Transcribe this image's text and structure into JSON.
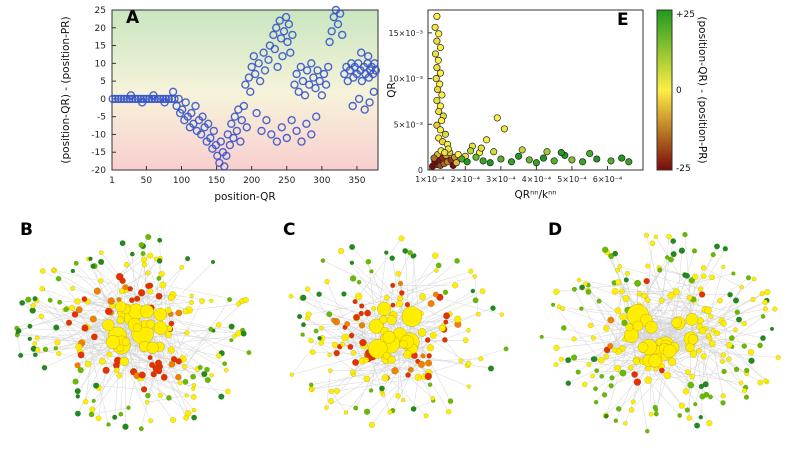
{
  "chart_data": {
    "panel_A": {
      "label": "A",
      "type": "scatter",
      "xlabel": "position-QR",
      "ylabel": "(position-QR) - (position-PR)",
      "xlim": [
        1,
        380
      ],
      "ylim": [
        -20,
        25
      ],
      "xticks": [
        1,
        50,
        100,
        150,
        200,
        250,
        300,
        350
      ],
      "yticks": [
        -20,
        -15,
        -10,
        -5,
        0,
        5,
        10,
        15,
        20,
        25
      ],
      "marker_color": "#3352c8",
      "bg_gradient": [
        "#c9e6c0",
        "#f6f3da",
        "#f9cfcf"
      ],
      "points": [
        [
          2,
          0
        ],
        [
          6,
          0
        ],
        [
          10,
          0
        ],
        [
          14,
          0
        ],
        [
          18,
          0
        ],
        [
          22,
          0
        ],
        [
          26,
          0
        ],
        [
          30,
          0
        ],
        [
          34,
          0
        ],
        [
          38,
          0
        ],
        [
          42,
          0
        ],
        [
          46,
          0
        ],
        [
          50,
          0
        ],
        [
          54,
          0
        ],
        [
          58,
          0
        ],
        [
          62,
          0
        ],
        [
          66,
          0
        ],
        [
          70,
          0
        ],
        [
          74,
          0
        ],
        [
          78,
          0
        ],
        [
          82,
          0
        ],
        [
          86,
          0
        ],
        [
          90,
          0
        ],
        [
          28,
          1
        ],
        [
          44,
          -1
        ],
        [
          60,
          1
        ],
        [
          76,
          -1
        ],
        [
          88,
          2
        ],
        [
          93,
          -2
        ],
        [
          96,
          0
        ],
        [
          98,
          -4
        ],
        [
          101,
          -3
        ],
        [
          104,
          -6
        ],
        [
          106,
          -1
        ],
        [
          109,
          -5
        ],
        [
          112,
          -8
        ],
        [
          114,
          -4
        ],
        [
          117,
          -7
        ],
        [
          120,
          -2
        ],
        [
          122,
          -9
        ],
        [
          125,
          -6
        ],
        [
          128,
          -10
        ],
        [
          130,
          -5
        ],
        [
          133,
          -8
        ],
        [
          136,
          -12
        ],
        [
          138,
          -7
        ],
        [
          141,
          -11
        ],
        [
          144,
          -14
        ],
        [
          146,
          -9
        ],
        [
          149,
          -13
        ],
        [
          151,
          -16
        ],
        [
          154,
          -18
        ],
        [
          156,
          -12
        ],
        [
          159,
          -15
        ],
        [
          161,
          -19
        ],
        [
          164,
          -16
        ],
        [
          166,
          -10
        ],
        [
          169,
          -13
        ],
        [
          171,
          -7
        ],
        [
          174,
          -11
        ],
        [
          176,
          -5
        ],
        [
          179,
          -9
        ],
        [
          181,
          -3
        ],
        [
          184,
          -12
        ],
        [
          186,
          -6
        ],
        [
          189,
          -2
        ],
        [
          191,
          4
        ],
        [
          193,
          -8
        ],
        [
          196,
          6
        ],
        [
          198,
          2
        ],
        [
          200,
          9
        ],
        [
          203,
          12
        ],
        [
          205,
          7
        ],
        [
          207,
          -4
        ],
        [
          210,
          10
        ],
        [
          212,
          5
        ],
        [
          214,
          -9
        ],
        [
          217,
          13
        ],
        [
          219,
          8
        ],
        [
          221,
          -6
        ],
        [
          224,
          11
        ],
        [
          226,
          15
        ],
        [
          228,
          -10
        ],
        [
          231,
          18
        ],
        [
          233,
          14
        ],
        [
          235,
          20
        ],
        [
          237,
          9
        ],
        [
          240,
          22
        ],
        [
          242,
          17
        ],
        [
          244,
          12
        ],
        [
          246,
          19
        ],
        [
          249,
          23
        ],
        [
          251,
          16
        ],
        [
          253,
          21
        ],
        [
          255,
          13
        ],
        [
          258,
          18
        ],
        [
          236,
          -12
        ],
        [
          243,
          -8
        ],
        [
          250,
          -11
        ],
        [
          257,
          -6
        ],
        [
          264,
          -9
        ],
        [
          271,
          -12
        ],
        [
          278,
          -7
        ],
        [
          285,
          -10
        ],
        [
          292,
          -5
        ],
        [
          261,
          4
        ],
        [
          264,
          7
        ],
        [
          267,
          2
        ],
        [
          270,
          9
        ],
        [
          273,
          5
        ],
        [
          276,
          1
        ],
        [
          279,
          8
        ],
        [
          282,
          4
        ],
        [
          285,
          10
        ],
        [
          288,
          6
        ],
        [
          291,
          3
        ],
        [
          294,
          8
        ],
        [
          297,
          5
        ],
        [
          300,
          1
        ],
        [
          303,
          7
        ],
        [
          306,
          4
        ],
        [
          309,
          9
        ],
        [
          311,
          16
        ],
        [
          314,
          19
        ],
        [
          317,
          23
        ],
        [
          320,
          25
        ],
        [
          323,
          21
        ],
        [
          326,
          24
        ],
        [
          329,
          18
        ],
        [
          332,
          7
        ],
        [
          335,
          9
        ],
        [
          337,
          5
        ],
        [
          340,
          8
        ],
        [
          342,
          10
        ],
        [
          345,
          6
        ],
        [
          347,
          9
        ],
        [
          350,
          7
        ],
        [
          352,
          10
        ],
        [
          355,
          8
        ],
        [
          357,
          5
        ],
        [
          360,
          9
        ],
        [
          362,
          7
        ],
        [
          365,
          10
        ],
        [
          367,
          6
        ],
        [
          369,
          8
        ],
        [
          371,
          9
        ],
        [
          373,
          7
        ],
        [
          375,
          10
        ],
        [
          377,
          8
        ],
        [
          344,
          -2
        ],
        [
          353,
          0
        ],
        [
          361,
          -3
        ],
        [
          368,
          -1
        ],
        [
          374,
          2
        ],
        [
          356,
          13
        ],
        [
          366,
          12
        ]
      ]
    },
    "panel_E": {
      "label": "E",
      "type": "scatter",
      "xlabel": "QRⁿⁿ/kⁿⁿ",
      "ylabel": "QR",
      "xlim": [
        0.95,
        7.0
      ],
      "ylim": [
        0,
        17.5
      ],
      "xticks": [
        {
          "v": 1,
          "label": "1×10⁻⁴"
        },
        {
          "v": 2,
          "label": "2×10⁻⁴"
        },
        {
          "v": 3,
          "label": "3×10⁻⁴"
        },
        {
          "v": 4,
          "label": "4×10⁻⁴"
        },
        {
          "v": 5,
          "label": "5×10⁻⁴"
        },
        {
          "v": 6,
          "label": "6×10⁻⁴"
        }
      ],
      "yticks": [
        {
          "v": 0,
          "label": "0"
        },
        {
          "v": 5,
          "label": "5×10⁻³"
        },
        {
          "v": 10,
          "label": "10×10⁻³"
        },
        {
          "v": 15,
          "label": "15×10⁻³"
        }
      ],
      "points": [
        [
          1.2,
          16.8,
          0
        ],
        [
          1.15,
          15.6,
          2
        ],
        [
          1.25,
          14.9,
          0
        ],
        [
          1.2,
          14.1,
          -2
        ],
        [
          1.3,
          13.4,
          0
        ],
        [
          1.16,
          12.7,
          3
        ],
        [
          1.24,
          12.0,
          0
        ],
        [
          1.2,
          11.2,
          -2
        ],
        [
          1.3,
          10.6,
          0
        ],
        [
          1.18,
          10.0,
          2
        ],
        [
          1.28,
          9.4,
          0
        ],
        [
          1.22,
          8.8,
          -3
        ],
        [
          1.34,
          8.2,
          0
        ],
        [
          1.2,
          7.6,
          3
        ],
        [
          1.3,
          7.0,
          0
        ],
        [
          1.25,
          6.4,
          -2
        ],
        [
          1.38,
          5.9,
          4
        ],
        [
          1.33,
          5.4,
          0
        ],
        [
          1.2,
          4.9,
          -4
        ],
        [
          1.3,
          4.4,
          0
        ],
        [
          1.44,
          3.9,
          5
        ],
        [
          1.25,
          3.5,
          0
        ],
        [
          1.36,
          3.1,
          -3
        ],
        [
          1.5,
          2.8,
          0
        ],
        [
          1.08,
          0.4,
          -25
        ],
        [
          1.2,
          0.6,
          -22
        ],
        [
          1.14,
          0.9,
          -25
        ],
        [
          1.3,
          0.5,
          -18
        ],
        [
          1.26,
          1.1,
          -24
        ],
        [
          1.4,
          0.7,
          -15
        ],
        [
          1.36,
          1.3,
          -22
        ],
        [
          1.5,
          0.9,
          -12
        ],
        [
          1.46,
          1.6,
          -8
        ],
        [
          1.6,
          1.1,
          -20
        ],
        [
          1.56,
          1.9,
          -4
        ],
        [
          1.7,
          1.4,
          -10
        ],
        [
          1.22,
          1.7,
          -6
        ],
        [
          1.32,
          2.1,
          0
        ],
        [
          1.52,
          2.3,
          2
        ],
        [
          1.66,
          0.5,
          -25
        ],
        [
          1.12,
          1.3,
          -14
        ],
        [
          1.42,
          1.9,
          -2
        ],
        [
          1.75,
          0.8,
          -6
        ],
        [
          1.8,
          1.7,
          0
        ],
        [
          2.9,
          5.7,
          0
        ],
        [
          3.1,
          4.5,
          2
        ],
        [
          2.6,
          3.3,
          0
        ],
        [
          2.2,
          2.6,
          3
        ],
        [
          2.4,
          1.9,
          0
        ],
        [
          2.0,
          1.5,
          -2
        ],
        [
          2.8,
          2.0,
          5
        ],
        [
          2.15,
          2.1,
          8
        ],
        [
          2.45,
          2.4,
          4
        ],
        [
          1.9,
          1.2,
          20
        ],
        [
          2.05,
          0.9,
          25
        ],
        [
          2.3,
          1.4,
          17
        ],
        [
          2.5,
          1.0,
          22
        ],
        [
          2.7,
          0.8,
          25
        ],
        [
          3.0,
          1.2,
          19
        ],
        [
          3.3,
          0.9,
          23
        ],
        [
          3.5,
          1.5,
          25
        ],
        [
          3.8,
          1.1,
          17
        ],
        [
          4.0,
          0.8,
          22
        ],
        [
          4.2,
          1.3,
          25
        ],
        [
          4.5,
          1.0,
          19
        ],
        [
          4.8,
          1.6,
          25
        ],
        [
          5.0,
          1.1,
          14
        ],
        [
          5.3,
          0.9,
          22
        ],
        [
          5.7,
          1.2,
          25
        ],
        [
          6.1,
          1.0,
          19
        ],
        [
          6.4,
          1.3,
          25
        ],
        [
          4.3,
          2.0,
          10
        ],
        [
          3.6,
          2.2,
          7
        ],
        [
          4.7,
          1.9,
          24
        ],
        [
          5.5,
          1.8,
          20
        ],
        [
          6.6,
          0.9,
          22
        ]
      ]
    },
    "colorbar": {
      "title": "(position-QR) - (position-PR)",
      "max_label": "+25",
      "mid_label": "0",
      "min_label": "-25",
      "colors": {
        "positive": "#1e9a1e",
        "zero": "#ffee44",
        "negative": "#7a0a0a"
      }
    },
    "panel_B": {
      "label": "B",
      "type": "network",
      "seed": 7,
      "hub": {
        "count": 24,
        "color": "#ffee00",
        "spread": 30
      },
      "layers": [
        {
          "count": 82,
          "r_in": 30,
          "r_out": 62,
          "colors": [
            {
              "c": "#e63000",
              "p": 0.5
            },
            {
              "c": "#f08000",
              "p": 0.14
            },
            {
              "c": "#ffee00",
              "p": 0.36
            }
          ]
        },
        {
          "count": 130,
          "r_in": 62,
          "r_out": 106,
          "colors": [
            {
              "c": "#ffee00",
              "p": 0.44
            },
            {
              "c": "#66bb00",
              "p": 0.3
            },
            {
              "c": "#1f8a1f",
              "p": 0.26
            }
          ]
        }
      ],
      "edge_color": "#d4d4d4"
    },
    "panel_C": {
      "label": "C",
      "type": "network",
      "seed": 13,
      "hub": {
        "count": 22,
        "color": "#ffee00",
        "spread": 28
      },
      "layers": [
        {
          "count": 74,
          "r_in": 28,
          "r_out": 60,
          "colors": [
            {
              "c": "#e63000",
              "p": 0.52
            },
            {
              "c": "#f08000",
              "p": 0.16
            },
            {
              "c": "#ffee00",
              "p": 0.32
            }
          ]
        },
        {
          "count": 88,
          "r_in": 60,
          "r_out": 102,
          "colors": [
            {
              "c": "#ffee00",
              "p": 0.55
            },
            {
              "c": "#66bb00",
              "p": 0.27
            },
            {
              "c": "#1f8a1f",
              "p": 0.18
            }
          ]
        }
      ],
      "edge_color": "#d4d4d4"
    },
    "panel_D": {
      "label": "D",
      "type": "network",
      "seed": 29,
      "hub": {
        "count": 26,
        "color": "#ffee00",
        "spread": 32
      },
      "layers": [
        {
          "count": 70,
          "r_in": 32,
          "r_out": 62,
          "colors": [
            {
              "c": "#ffee00",
              "p": 0.82
            },
            {
              "c": "#e63000",
              "p": 0.05
            },
            {
              "c": "#f08000",
              "p": 0.04
            },
            {
              "c": "#66bb00",
              "p": 0.09
            }
          ]
        },
        {
          "count": 140,
          "r_in": 62,
          "r_out": 108,
          "colors": [
            {
              "c": "#ffee00",
              "p": 0.42
            },
            {
              "c": "#66bb00",
              "p": 0.34
            },
            {
              "c": "#1f8a1f",
              "p": 0.24
            }
          ]
        }
      ],
      "edge_color": "#d4d4d4"
    }
  }
}
